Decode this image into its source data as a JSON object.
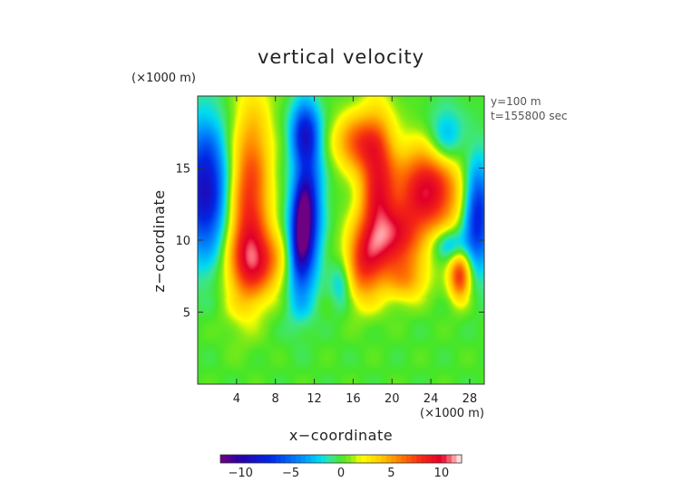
{
  "chart_data": {
    "type": "heatmap",
    "title": "vertical velocity",
    "xlabel": "x−coordinate",
    "ylabel": "z−coordinate",
    "x_unit_label": "(×1000 m)",
    "y_unit_label": "(×1000 m)",
    "info_lines": [
      "y=100 m",
      "t=155800 sec"
    ],
    "xlim": [
      0,
      29.5
    ],
    "ylim": [
      0,
      20
    ],
    "x_ticks": [
      4,
      8,
      12,
      16,
      20,
      24,
      28
    ],
    "y_ticks": [
      5,
      10,
      15
    ],
    "colorbar": {
      "range": [
        -12,
        12
      ],
      "ticks": [
        -10,
        -5,
        0,
        5,
        10
      ],
      "tick_labels": [
        "−10",
        "−5",
        "0",
        "5",
        "10"
      ]
    },
    "background_value": 0,
    "features": [
      {
        "x": 11.0,
        "z": 11.0,
        "sx": 1.1,
        "sy": 3.5,
        "amp": -10,
        "rot": 0.08
      },
      {
        "x": 10.8,
        "z": 11.0,
        "sx": 0.55,
        "sy": 1.9,
        "amp": -6,
        "rot": 0.08
      },
      {
        "x": 11.0,
        "z": 17.5,
        "sx": 1.0,
        "sy": 1.5,
        "amp": -7,
        "rot": 0
      },
      {
        "x": 0.8,
        "z": 13.5,
        "sx": 1.6,
        "sy": 3.2,
        "amp": -9,
        "rot": 0
      },
      {
        "x": 28.8,
        "z": 11.8,
        "sx": 1.0,
        "sy": 2.6,
        "amp": -8,
        "rot": 0
      },
      {
        "x": 25.5,
        "z": 17.0,
        "sx": 1.3,
        "sy": 1.5,
        "amp": -4,
        "rot": 0
      },
      {
        "x": 14.8,
        "z": 7.0,
        "sx": 0.8,
        "sy": 1.2,
        "amp": -3,
        "rot": 0
      },
      {
        "x": 5.3,
        "z": 12.5,
        "sx": 1.5,
        "sy": 5.0,
        "amp": 8,
        "rot": 0.06
      },
      {
        "x": 6.5,
        "z": 8.5,
        "sx": 2.0,
        "sy": 1.6,
        "amp": 6,
        "rot": 0
      },
      {
        "x": 18.5,
        "z": 14.0,
        "sx": 1.3,
        "sy": 3.5,
        "amp": 8,
        "rot": 0
      },
      {
        "x": 16.2,
        "z": 16.8,
        "sx": 1.6,
        "sy": 1.4,
        "amp": 6,
        "rot": 0
      },
      {
        "x": 17.0,
        "z": 8.5,
        "sx": 1.4,
        "sy": 2.0,
        "amp": 7,
        "rot": 0
      },
      {
        "x": 20.5,
        "z": 10.0,
        "sx": 1.8,
        "sy": 1.6,
        "amp": 7,
        "rot": 0
      },
      {
        "x": 23.7,
        "z": 13.5,
        "sx": 2.4,
        "sy": 2.2,
        "amp": 10,
        "rot": 0
      },
      {
        "x": 27.0,
        "z": 7.5,
        "sx": 0.8,
        "sy": 1.2,
        "amp": 8,
        "rot": 0
      },
      {
        "x": 21.5,
        "z": 7.2,
        "sx": 1.6,
        "sy": 1.1,
        "amp": 4,
        "rot": 0
      },
      {
        "x": 26.0,
        "z": 9.7,
        "sx": 1.3,
        "sy": 0.8,
        "amp": -4,
        "rot": 0
      }
    ]
  }
}
